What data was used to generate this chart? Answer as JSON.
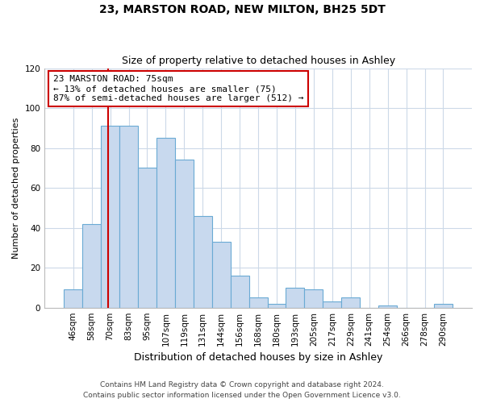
{
  "title": "23, MARSTON ROAD, NEW MILTON, BH25 5DT",
  "subtitle": "Size of property relative to detached houses in Ashley",
  "xlabel": "Distribution of detached houses by size in Ashley",
  "ylabel": "Number of detached properties",
  "bar_labels": [
    "46sqm",
    "58sqm",
    "70sqm",
    "83sqm",
    "95sqm",
    "107sqm",
    "119sqm",
    "131sqm",
    "144sqm",
    "156sqm",
    "168sqm",
    "180sqm",
    "193sqm",
    "205sqm",
    "217sqm",
    "229sqm",
    "241sqm",
    "254sqm",
    "266sqm",
    "278sqm",
    "290sqm"
  ],
  "bar_heights": [
    9,
    42,
    91,
    91,
    70,
    85,
    74,
    46,
    33,
    16,
    5,
    2,
    10,
    9,
    3,
    5,
    0,
    1,
    0,
    0,
    2
  ],
  "bar_color": "#c8d9ee",
  "bar_edge_color": "#6aaad4",
  "ylim": [
    0,
    120
  ],
  "yticks": [
    0,
    20,
    40,
    60,
    80,
    100,
    120
  ],
  "vline_x_index": 2,
  "vline_color": "#cc0000",
  "annotation_text": "23 MARSTON ROAD: 75sqm\n← 13% of detached houses are smaller (75)\n87% of semi-detached houses are larger (512) →",
  "annotation_box_color": "#ffffff",
  "annotation_box_edge": "#cc0000",
  "footer_line1": "Contains HM Land Registry data © Crown copyright and database right 2024.",
  "footer_line2": "Contains public sector information licensed under the Open Government Licence v3.0.",
  "bg_color": "#ffffff",
  "grid_color": "#ccd9e8",
  "title_fontsize": 10,
  "subtitle_fontsize": 9,
  "ylabel_fontsize": 8,
  "xlabel_fontsize": 9,
  "tick_fontsize": 7.5,
  "footer_fontsize": 6.5,
  "annotation_fontsize": 8
}
